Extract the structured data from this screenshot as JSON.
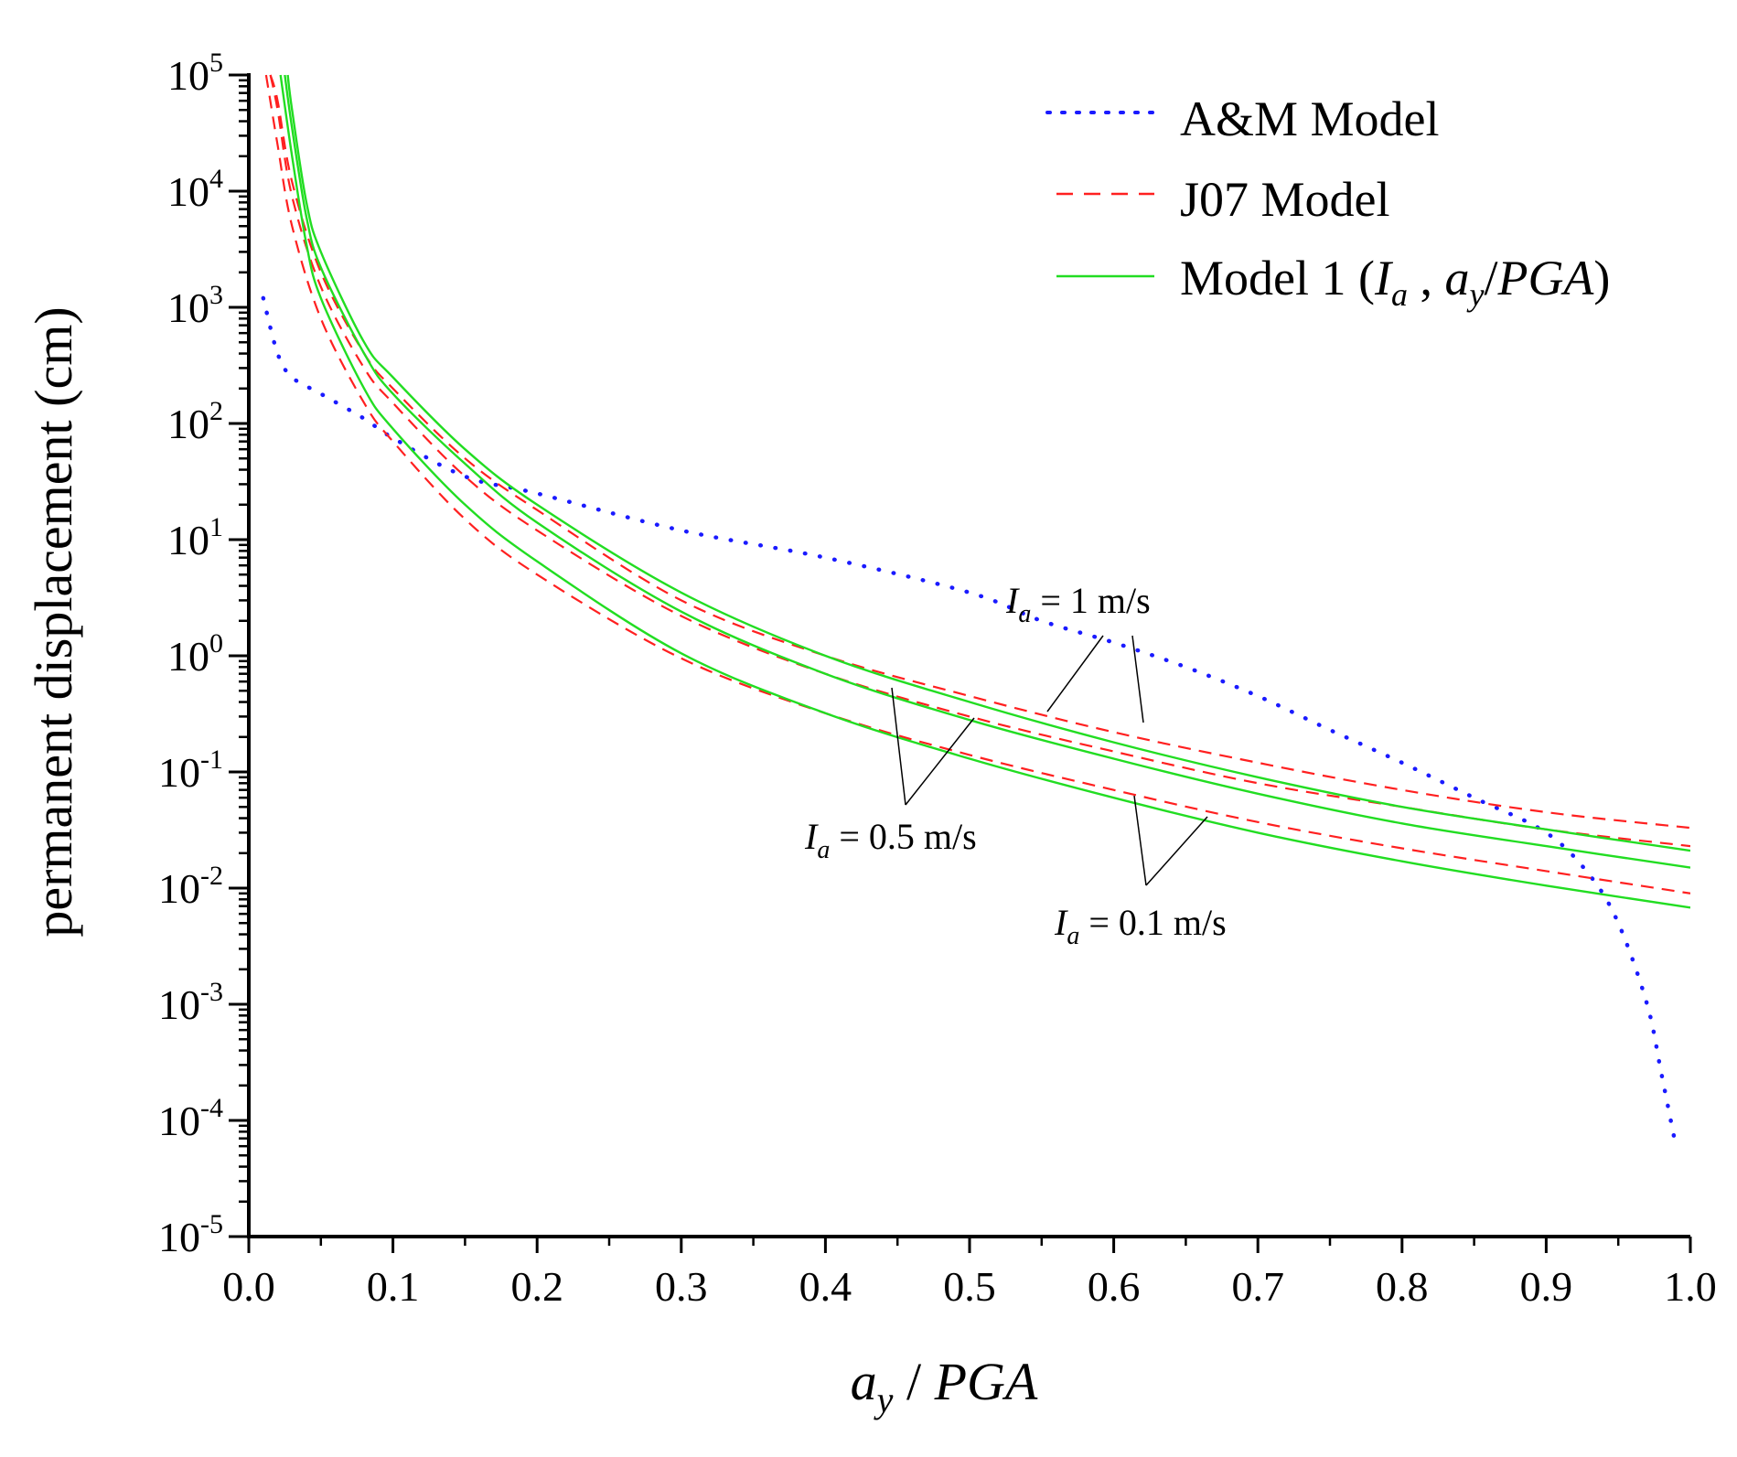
{
  "chart_data": {
    "type": "line",
    "title": "",
    "xlabel": {
      "base": "a",
      "sub": "y",
      "rest": " / ",
      "italic_rest": "PGA"
    },
    "ylabel": "permanent displacement (cm)",
    "xlim": [
      0.0,
      1.0
    ],
    "ylim_log10": [
      -5,
      5
    ],
    "y_scale": "log",
    "x_ticks": [
      "0.0",
      "0.1",
      "0.2",
      "0.3",
      "0.4",
      "0.5",
      "0.6",
      "0.7",
      "0.8",
      "0.9",
      "1.0"
    ],
    "y_tick_base": "10",
    "y_tick_exponents": [
      "-5",
      "-4",
      "-3",
      "-2",
      "-1",
      "0",
      "1",
      "2",
      "3",
      "4",
      "5"
    ],
    "legend": {
      "position": "top-right",
      "entries": [
        {
          "key": "am",
          "label": "A&M Model"
        },
        {
          "key": "j07",
          "label": "J07 Model"
        },
        {
          "key": "m1",
          "label_pre": "Model 1 (",
          "label_ia": "I",
          "label_ia_sub": "a",
          "label_mid": " , ",
          "label_ay": "a",
          "label_ay_sub": "y",
          "label_post": "/",
          "label_pga": "PGA",
          "label_end": ")"
        }
      ]
    },
    "colors": {
      "am": "#1a1aff",
      "j07": "#ff2020",
      "m1": "#22dd22",
      "axis": "#000000"
    },
    "annotations": [
      {
        "key": "ia1",
        "ia": "I",
        "sub": "a",
        "text": " = 1 m/s"
      },
      {
        "key": "ia05",
        "ia": "I",
        "sub": "a",
        "text": " = 0.5 m/s"
      },
      {
        "key": "ia01",
        "ia": "I",
        "sub": "a",
        "text": " = 0.1 m/s"
      }
    ],
    "series": [
      {
        "name": "A&M Model",
        "style": "dotted",
        "color_key": "am",
        "x": [
          0.01,
          0.02,
          0.03,
          0.05,
          0.08,
          0.1,
          0.15,
          0.2,
          0.3,
          0.4,
          0.5,
          0.55,
          0.6,
          0.65,
          0.7,
          0.75,
          0.8,
          0.85,
          0.9,
          0.93,
          0.95,
          0.97,
          0.98,
          0.99
        ],
        "y": [
          1200,
          400,
          250,
          180,
          110,
          75,
          35,
          25,
          12,
          7,
          3.5,
          2.0,
          1.3,
          0.8,
          0.45,
          0.23,
          0.12,
          0.06,
          0.03,
          0.013,
          0.005,
          0.001,
          0.00025,
          6e-05
        ]
      },
      {
        "name": "J07 Model (Ia = 1 m/s)",
        "style": "dashed",
        "color_key": "j07",
        "x": [
          0.015,
          0.02,
          0.03,
          0.05,
          0.08,
          0.1,
          0.15,
          0.2,
          0.3,
          0.4,
          0.5,
          0.6,
          0.7,
          0.8,
          0.9,
          1.0
        ],
        "y": [
          100000,
          60000,
          12000,
          2000,
          400,
          200,
          50,
          18,
          3.0,
          1.0,
          0.45,
          0.22,
          0.12,
          0.07,
          0.045,
          0.033
        ]
      },
      {
        "name": "J07 Model (Ia = 0.5 m/s)",
        "style": "dashed",
        "color_key": "j07",
        "x": [
          0.015,
          0.02,
          0.03,
          0.05,
          0.08,
          0.1,
          0.15,
          0.2,
          0.3,
          0.4,
          0.5,
          0.6,
          0.7,
          0.8,
          0.9,
          1.0
        ],
        "y": [
          100000,
          50000,
          9000,
          1500,
          300,
          150,
          35,
          12,
          2.2,
          0.7,
          0.3,
          0.15,
          0.08,
          0.05,
          0.032,
          0.023
        ]
      },
      {
        "name": "J07 Model (Ia = 0.1 m/s)",
        "style": "dashed",
        "color_key": "j07",
        "x": [
          0.012,
          0.02,
          0.03,
          0.05,
          0.08,
          0.1,
          0.15,
          0.2,
          0.3,
          0.4,
          0.5,
          0.6,
          0.7,
          0.8,
          0.9,
          1.0
        ],
        "y": [
          100000,
          25000,
          5000,
          800,
          150,
          70,
          15,
          5,
          0.95,
          0.32,
          0.14,
          0.07,
          0.037,
          0.022,
          0.014,
          0.009
        ]
      },
      {
        "name": "Model 1 (Ia = 1 m/s)",
        "style": "solid",
        "color_key": "m1",
        "x": [
          0.027,
          0.03,
          0.04,
          0.05,
          0.08,
          0.1,
          0.15,
          0.2,
          0.3,
          0.4,
          0.5,
          0.6,
          0.7,
          0.8,
          0.9,
          1.0
        ],
        "y": [
          100000,
          50000,
          8000,
          3000,
          500,
          250,
          60,
          20,
          3.5,
          1.0,
          0.4,
          0.18,
          0.09,
          0.05,
          0.032,
          0.021
        ]
      },
      {
        "name": "Model 1 (Ia = 0.5 m/s)",
        "style": "solid",
        "color_key": "m1",
        "x": [
          0.025,
          0.03,
          0.04,
          0.05,
          0.08,
          0.1,
          0.15,
          0.2,
          0.3,
          0.4,
          0.5,
          0.6,
          0.7,
          0.8,
          0.9,
          1.0
        ],
        "y": [
          100000,
          35000,
          6000,
          2200,
          400,
          180,
          45,
          14,
          2.4,
          0.7,
          0.28,
          0.13,
          0.065,
          0.036,
          0.023,
          0.015
        ]
      },
      {
        "name": "Model 1 (Ia = 0.1 m/s)",
        "style": "solid",
        "color_key": "m1",
        "x": [
          0.022,
          0.03,
          0.04,
          0.05,
          0.08,
          0.1,
          0.15,
          0.2,
          0.3,
          0.4,
          0.5,
          0.6,
          0.7,
          0.8,
          0.9,
          1.0
        ],
        "y": [
          100000,
          20000,
          3500,
          1200,
          200,
          90,
          20,
          6.5,
          1.05,
          0.32,
          0.13,
          0.06,
          0.03,
          0.017,
          0.0105,
          0.0068
        ]
      }
    ]
  }
}
